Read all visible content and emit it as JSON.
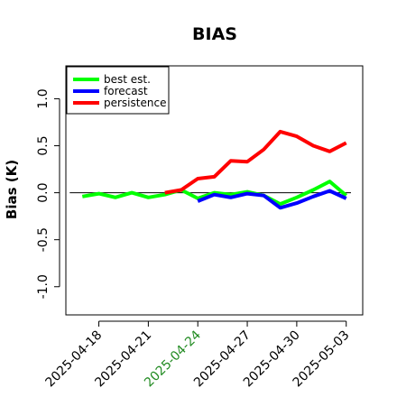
{
  "chart_data": {
    "type": "line",
    "title": "BIAS",
    "xlabel": "",
    "ylabel": "Bias (K)",
    "ylim": [
      -1.3,
      1.35
    ],
    "xlim": [
      "2025-04-16",
      "2025-05-04"
    ],
    "yticks": [
      -1.0,
      -0.5,
      0.0,
      0.5,
      1.0
    ],
    "ytick_labels": [
      "-1.0",
      "-0.5",
      "0.0",
      "0.5",
      "1.0"
    ],
    "xticks": [
      "2025-04-18",
      "2025-04-21",
      "2025-04-24",
      "2025-04-27",
      "2025-04-30",
      "2025-05-03"
    ],
    "xtick_labels": [
      "2025-04-18",
      "2025-04-21",
      "2025-04-24",
      "2025-04-27",
      "2025-04-30",
      "2025-05-03"
    ],
    "xtick_colors": [
      "#000000",
      "#000000",
      "#228b22",
      "#000000",
      "#000000",
      "#000000"
    ],
    "reference_line": 0.0,
    "legend_position": "top-left",
    "grid": false,
    "series": [
      {
        "name": "best est.",
        "color": "#00ff00",
        "x": [
          "2025-04-17",
          "2025-04-18",
          "2025-04-19",
          "2025-04-20",
          "2025-04-21",
          "2025-04-22",
          "2025-04-23",
          "2025-04-24",
          "2025-04-25",
          "2025-04-26",
          "2025-04-27",
          "2025-04-28",
          "2025-04-29",
          "2025-04-30",
          "2025-05-01",
          "2025-05-02",
          "2025-05-03"
        ],
        "y": [
          -0.04,
          -0.01,
          -0.05,
          0.0,
          -0.05,
          -0.02,
          0.03,
          -0.06,
          0.0,
          -0.02,
          0.01,
          -0.03,
          -0.12,
          -0.05,
          0.03,
          0.12,
          -0.03
        ]
      },
      {
        "name": "forecast",
        "color": "#0000ff",
        "x": [
          "2025-04-24",
          "2025-04-25",
          "2025-04-26",
          "2025-04-27",
          "2025-04-28",
          "2025-04-29",
          "2025-04-30",
          "2025-05-01",
          "2025-05-02",
          "2025-05-03"
        ],
        "y": [
          -0.09,
          -0.02,
          -0.05,
          -0.01,
          -0.03,
          -0.16,
          -0.11,
          -0.04,
          0.02,
          -0.06
        ]
      },
      {
        "name": "persistence",
        "color": "#ff0000",
        "x": [
          "2025-04-22",
          "2025-04-23",
          "2025-04-24",
          "2025-04-25",
          "2025-04-26",
          "2025-04-27",
          "2025-04-28",
          "2025-04-29",
          "2025-04-30",
          "2025-05-01",
          "2025-05-02",
          "2025-05-03"
        ],
        "y": [
          0.0,
          0.03,
          0.15,
          0.17,
          0.34,
          0.33,
          0.46,
          0.65,
          0.6,
          0.5,
          0.44,
          0.53
        ]
      }
    ]
  }
}
